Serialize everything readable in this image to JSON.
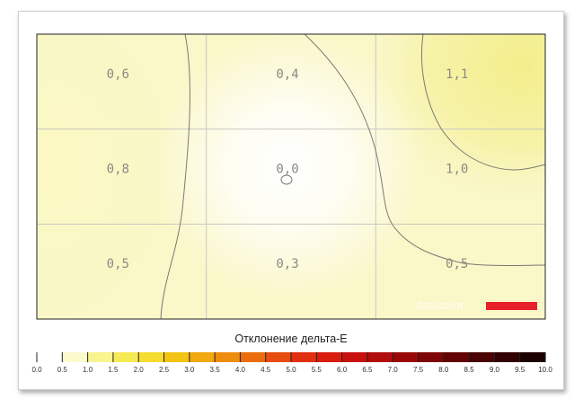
{
  "chart_data": {
    "type": "heatmap",
    "rows": 3,
    "cols": 3,
    "cells": [
      [
        "0,6",
        "0,4",
        "1,1"
      ],
      [
        "0,8",
        "0,0",
        "1,0"
      ],
      [
        "0,5",
        "0,3",
        "0,5"
      ]
    ],
    "values": [
      [
        0.6,
        0.4,
        1.1
      ],
      [
        0.8,
        0.0,
        1.0
      ],
      [
        0.5,
        0.3,
        0.5
      ]
    ],
    "contour_levels": [
      0.0,
      0.5,
      1.0
    ],
    "colorbar": {
      "title": "Отклонение дельта-E",
      "range": [
        0,
        10
      ],
      "tick_labels": [
        "0.0",
        "0.5",
        "1.0",
        "1.5",
        "2.0",
        "2.5",
        "3.0",
        "3.5",
        "4.0",
        "4.5",
        "5.0",
        "5.5",
        "6.0",
        "6.5",
        "7.0",
        "7.5",
        "8.0",
        "8.5",
        "9.0",
        "9.5",
        "10.0"
      ],
      "colors": [
        "#ffffff",
        "#fbfacd",
        "#f8f48e",
        "#f6ea55",
        "#f5dc2e",
        "#f3c416",
        "#f1a90f",
        "#ee8c0d",
        "#eb6d0d",
        "#e64d0e",
        "#e0300f",
        "#d81c10",
        "#c8100f",
        "#b20c0c",
        "#990808",
        "#7e0505",
        "#640303",
        "#4a0202",
        "#320101",
        "#1c0000",
        "#000000"
      ]
    },
    "grid": true
  },
  "logo": {
    "text": "datacolor",
    "bar_color": "#e8202a"
  }
}
